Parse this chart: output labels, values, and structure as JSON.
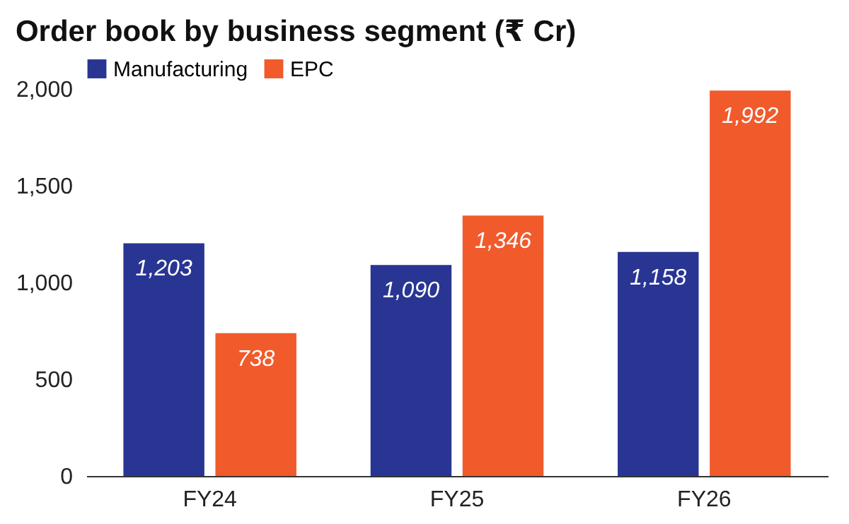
{
  "chart_data": {
    "type": "bar",
    "title": "Order book by business segment (₹ Cr)",
    "categories": [
      "FY24",
      "FY25",
      "FY26"
    ],
    "series": [
      {
        "name": "Manufacturing",
        "color": "#283593",
        "values": [
          1203,
          1090,
          1158
        ],
        "value_labels": [
          "1,203",
          "1,090",
          "1,158"
        ]
      },
      {
        "name": "EPC",
        "color": "#f15a2b",
        "values": [
          738,
          1346,
          1992
        ],
        "value_labels": [
          "738",
          "1,346",
          "1,992"
        ]
      }
    ],
    "ylim": [
      0,
      2000
    ],
    "yticks": [
      0,
      {
        "value": 500,
        "label": "500"
      },
      {
        "value": 1000,
        "label": "1,000"
      },
      {
        "value": 1500,
        "label": "1,500"
      },
      {
        "value": 2000,
        "label": "2,000"
      }
    ],
    "grid": false,
    "legend": "top"
  }
}
